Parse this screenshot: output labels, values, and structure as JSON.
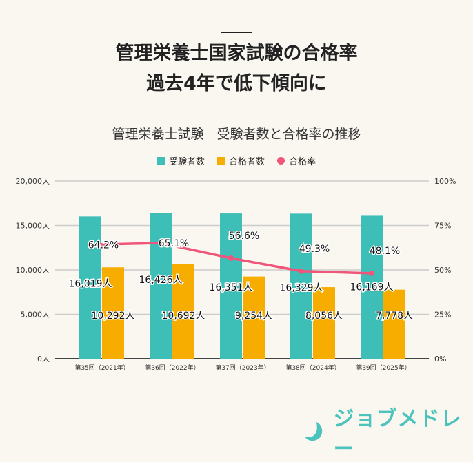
{
  "headline": [
    "管理栄養士国家試験の合格率",
    "過去4年で低下傾向に"
  ],
  "chart_data": {
    "type": "bar+line",
    "title": "管理栄養士試験　受験者数と合格率の推移",
    "categories": [
      "第35回（2021年）",
      "第36回（2022年）",
      "第37回（2023年）",
      "第38回（2024年）",
      "第39回（2025年）"
    ],
    "series": [
      {
        "name": "受験者数",
        "type": "bar",
        "axis": "left",
        "color": "#3dbfb8",
        "values": [
          16019,
          16426,
          16351,
          16329,
          16169
        ],
        "labels": [
          "16,019人",
          "16,426人",
          "16,351人",
          "16,329人",
          "16,169人"
        ]
      },
      {
        "name": "合格者数",
        "type": "bar",
        "axis": "left",
        "color": "#f7ad00",
        "values": [
          10292,
          10692,
          9254,
          8056,
          7778
        ],
        "labels": [
          "10,292人",
          "10,692人",
          "9,254人",
          "8,056人",
          "7,778人"
        ]
      },
      {
        "name": "合格率",
        "type": "line",
        "axis": "right",
        "color": "#f0557a",
        "values": [
          64.2,
          65.1,
          56.6,
          49.3,
          48.1
        ],
        "labels": [
          "64.2%",
          "65.1%",
          "56.6%",
          "49.3%",
          "48.1%"
        ]
      }
    ],
    "left_axis": {
      "ylim": [
        0,
        20000
      ],
      "ticks": [
        "0人",
        "5,000人",
        "10,000人",
        "15,000人",
        "20,000人"
      ]
    },
    "right_axis": {
      "ylim": [
        0,
        100
      ],
      "ticks": [
        "0%",
        "25%",
        "50%",
        "75%",
        "100%"
      ]
    },
    "grid": true,
    "legend": "top-center"
  },
  "logo": {
    "text": "ジョブメドレー"
  }
}
